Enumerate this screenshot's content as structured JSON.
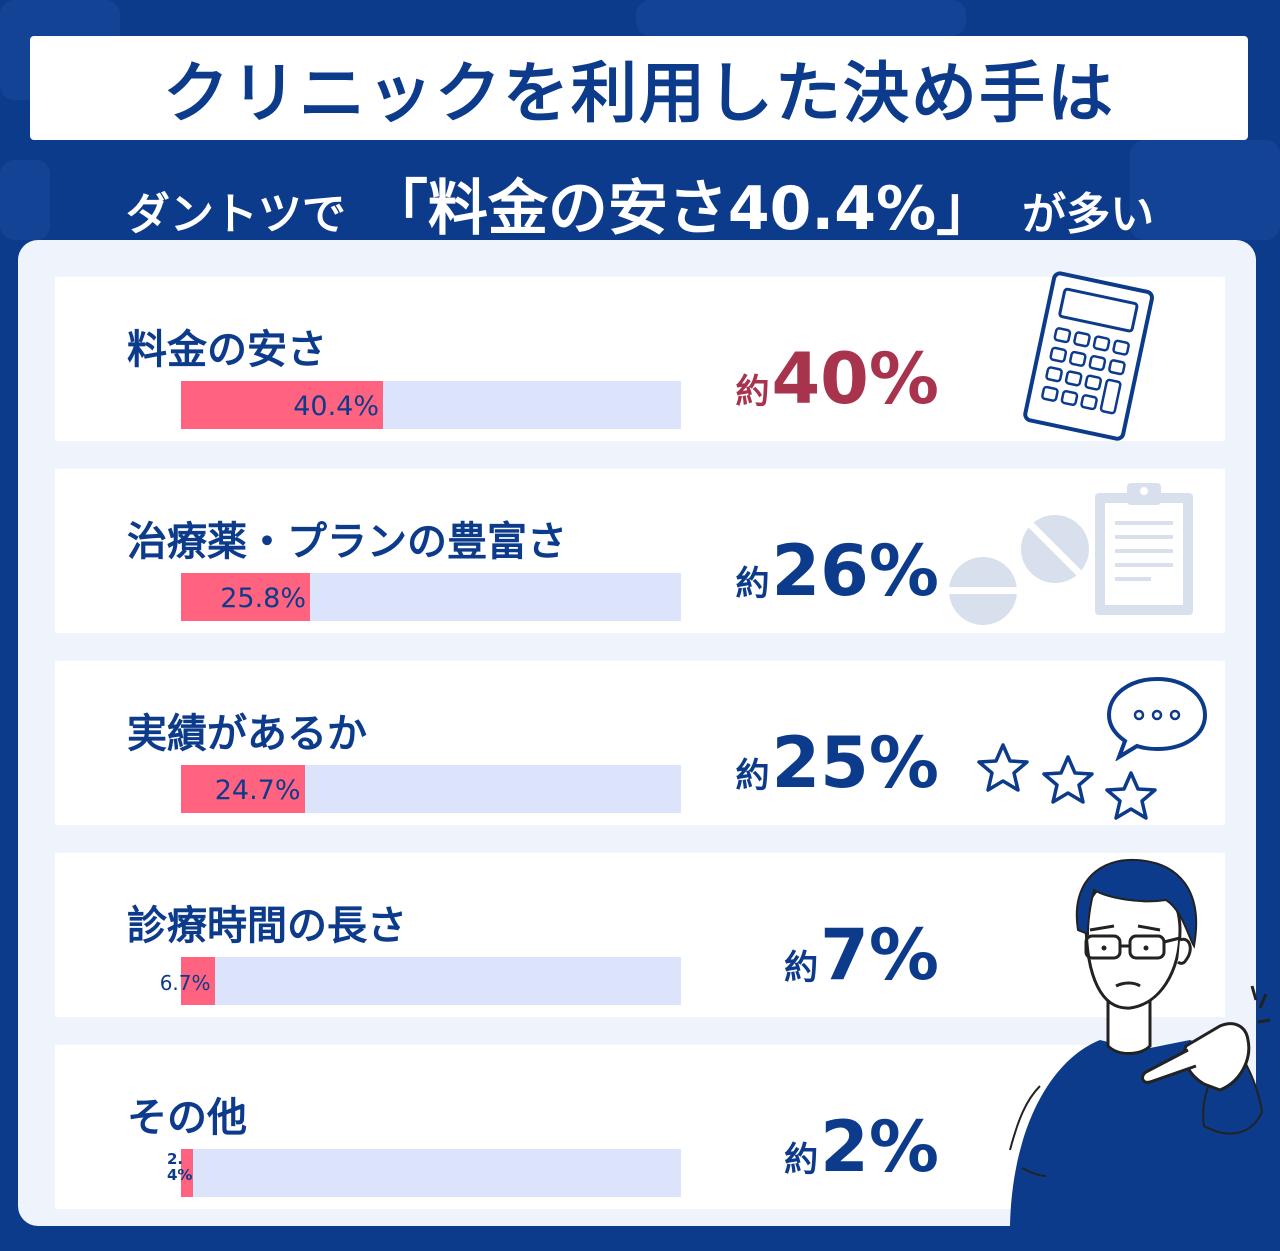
{
  "header": {
    "title": "クリニックを利用した決め手は",
    "subtitle_pre": "ダントツで",
    "subtitle_main": "「料金の安さ40.4%」",
    "subtitle_post": "が多い"
  },
  "rows": [
    {
      "label": "料金の安さ",
      "value_label": "40.4%",
      "approx_prefix": "約",
      "approx_value": "40%"
    },
    {
      "label": "治療薬・プランの豊富さ",
      "value_label": "25.8%",
      "approx_prefix": "約",
      "approx_value": "26%"
    },
    {
      "label": "実績があるか",
      "value_label": "24.7%",
      "approx_prefix": "約",
      "approx_value": "25%"
    },
    {
      "label": "診療時間の長さ",
      "value_label": "6.7%",
      "approx_prefix": "約",
      "approx_value": "7%"
    },
    {
      "label": "その他",
      "value_label": "2.4%",
      "approx_prefix": "約",
      "approx_value": "2%"
    }
  ],
  "chart_data": {
    "type": "bar",
    "orientation": "horizontal",
    "categories": [
      "料金の安さ",
      "治療薬・プランの豊富さ",
      "実績があるか",
      "診療時間の長さ",
      "その他"
    ],
    "values": [
      40.4,
      25.8,
      24.7,
      6.7,
      2.4
    ],
    "unit": "%",
    "xlim": [
      0,
      100
    ],
    "title": "クリニックを利用した決め手は",
    "xlabel": "",
    "ylabel": ""
  },
  "colors": {
    "background": "#0d3b8c",
    "panel": "#eef3fc",
    "bar_fill": "#ff637f",
    "bar_track": "#dbe4fb",
    "text_primary": "#0d3b8c",
    "highlight": "#a8334d"
  },
  "icons": [
    "calculator-icon",
    "pills-icon",
    "clipboard-icon",
    "speech-bubble-icon",
    "stars-icon",
    "man-pointing-illustration"
  ]
}
